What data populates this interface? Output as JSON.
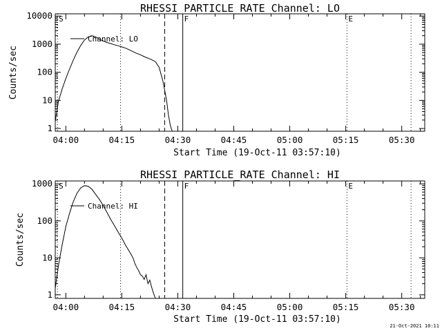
{
  "footer_stamp": "21-Oct-2021 10:11",
  "chart_data": [
    {
      "type": "line",
      "title": "RHESSI PARTICLE_RATE Channel: LO",
      "xlabel": "Start Time (19-Oct-11 03:57:10)",
      "ylabel": "Counts/sec",
      "yscale": "log",
      "ylim": [
        0.8,
        12000
      ],
      "xlim": [
        "03:57:10",
        "05:36:10"
      ],
      "x_ticks": [
        "04:00",
        "04:15",
        "04:30",
        "04:45",
        "05:00",
        "05:15",
        "05:30"
      ],
      "y_ticks": [
        {
          "value": 1,
          "label": "1"
        },
        {
          "value": 10,
          "label": "10"
        },
        {
          "value": 100,
          "label": "100"
        },
        {
          "value": 1000,
          "label": "1000"
        },
        {
          "value": 10000,
          "label": "10000"
        }
      ],
      "legend": "top-left",
      "series": [
        {
          "name": "Channel: LO",
          "x": [
            "03:57:10",
            "03:58",
            "03:59",
            "04:00",
            "04:01",
            "04:02",
            "04:03",
            "04:04",
            "04:05",
            "04:06",
            "04:07",
            "04:08",
            "04:09",
            "04:10",
            "04:11",
            "04:12",
            "04:13",
            "04:14",
            "04:15",
            "04:16",
            "04:17",
            "04:18",
            "04:19",
            "04:20",
            "04:21",
            "04:22",
            "04:23",
            "04:24",
            "04:25",
            "04:26",
            "04:27",
            "04:27:30",
            "04:28",
            "04:28:30"
          ],
          "y": [
            1.8,
            9,
            25,
            60,
            130,
            270,
            520,
            900,
            1400,
            1800,
            2000,
            1800,
            1500,
            1300,
            1150,
            1050,
            950,
            880,
            800,
            720,
            630,
            540,
            470,
            420,
            360,
            320,
            280,
            240,
            150,
            50,
            10,
            3,
            1.3,
            0.8
          ]
        }
      ],
      "markers": [
        {
          "time": "03:57:45",
          "style": "dotted",
          "flag": "S"
        },
        {
          "time": "04:14:40",
          "style": "dotted"
        },
        {
          "time": "04:26:30",
          "style": "dashed"
        },
        {
          "time": "04:31:20",
          "style": "solid",
          "flag": "F"
        },
        {
          "time": "05:15:20",
          "style": "dotted",
          "flag": "E"
        },
        {
          "time": "05:32:30",
          "style": "dotted"
        }
      ]
    },
    {
      "type": "line",
      "title": "RHESSI PARTICLE_RATE Channel: HI",
      "xlabel": "Start Time (19-Oct-11 03:57:10)",
      "ylabel": "Counts/sec",
      "yscale": "log",
      "ylim": [
        0.8,
        1200
      ],
      "xlim": [
        "03:57:10",
        "05:36:10"
      ],
      "x_ticks": [
        "04:00",
        "04:15",
        "04:30",
        "04:45",
        "05:00",
        "05:15",
        "05:30"
      ],
      "y_ticks": [
        {
          "value": 1,
          "label": "1"
        },
        {
          "value": 10,
          "label": "10"
        },
        {
          "value": 100,
          "label": "100"
        },
        {
          "value": 1000,
          "label": "1000"
        }
      ],
      "legend": "top-left",
      "series": [
        {
          "name": "Channel: HI",
          "x": [
            "03:57:10",
            "03:58",
            "03:59",
            "04:00",
            "04:01",
            "04:02",
            "04:03",
            "04:04",
            "04:05",
            "04:06",
            "04:07",
            "04:08",
            "04:09",
            "04:10",
            "04:11",
            "04:12",
            "04:13",
            "04:14",
            "04:15",
            "04:16",
            "04:17",
            "04:18",
            "04:18:30",
            "04:19",
            "04:19:30",
            "04:20",
            "04:20:30",
            "04:21",
            "04:21:30",
            "04:22",
            "04:22:30",
            "04:23",
            "04:23:30",
            "04:24"
          ],
          "y": [
            1.5,
            6,
            22,
            70,
            160,
            330,
            560,
            780,
            900,
            860,
            720,
            520,
            380,
            260,
            170,
            110,
            75,
            50,
            34,
            22,
            15,
            10,
            7,
            5.5,
            4.5,
            3.5,
            3.2,
            2.6,
            3.5,
            2,
            2.5,
            1.6,
            1.1,
            0.8
          ]
        }
      ],
      "markers": [
        {
          "time": "03:57:45",
          "style": "dotted",
          "flag": "S"
        },
        {
          "time": "04:14:40",
          "style": "dotted"
        },
        {
          "time": "04:26:30",
          "style": "dashed"
        },
        {
          "time": "04:31:20",
          "style": "solid",
          "flag": "F"
        },
        {
          "time": "05:15:20",
          "style": "dotted",
          "flag": "E"
        },
        {
          "time": "05:32:30",
          "style": "dotted"
        }
      ]
    }
  ]
}
